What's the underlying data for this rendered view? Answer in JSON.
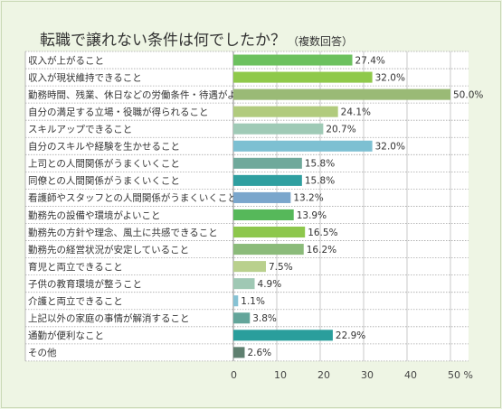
{
  "header": {
    "title": "転職で譲れない条件は何でしたか？",
    "subtitle": "（複数回答）"
  },
  "chart_data": {
    "type": "bar",
    "orientation": "horizontal",
    "title": "転職で譲れない条件は何でしたか？（複数回答）",
    "categories": [
      "収入が上がること",
      "収入が現状維持できること",
      "勤務時間、残業、休日などの労働条件・待遇がよいこと",
      "自分の満足する立場・役職が得られること",
      "スキルアップできること",
      "自分のスキルや経験を生かせること",
      "上司との人間関係がうまくいくこと",
      "同僚との人間関係がうまくいくこと",
      "看護師やスタッフとの人間関係がうまくいくこと",
      "勤務先の設備や環境がよいこと",
      "勤務先の方針や理念、風土に共感できること",
      "勤務先の経営状況が安定していること",
      "育児と両立できること",
      "子供の教育環境が整うこと",
      "介護と両立できること",
      "上記以外の家庭の事情が解消すること",
      "通勤が便利なこと",
      "その他"
    ],
    "values": [
      27.4,
      32.0,
      50.0,
      24.1,
      20.7,
      32.0,
      15.8,
      15.8,
      13.2,
      13.9,
      16.5,
      16.2,
      7.5,
      4.9,
      1.1,
      3.8,
      22.9,
      2.6
    ],
    "value_labels": [
      "27.4%",
      "32.0%",
      "50.0%",
      "24.1%",
      "20.7%",
      "32.0%",
      "15.8%",
      "15.8%",
      "13.2%",
      "13.9%",
      "16.5%",
      "16.2%",
      "7.5%",
      "4.9%",
      "1.1%",
      "3.8%",
      "22.9%",
      "2.6%"
    ],
    "colors": [
      "#6cc15e",
      "#8fc94a",
      "#9aba76",
      "#b1cb7d",
      "#9fcab6",
      "#7dc0d2",
      "#6fa99b",
      "#2f9fa0",
      "#7aa6cc",
      "#56b85a",
      "#8dc74c",
      "#8bbb7a",
      "#b9d08d",
      "#9fc8b4",
      "#86c2d4",
      "#63a59a",
      "#2a9e9c",
      "#5e7f6f"
    ],
    "xlim": [
      0,
      50
    ],
    "xticks": [
      "0",
      "10",
      "20",
      "30",
      "40",
      "50 %"
    ],
    "grid": true,
    "legend": "none"
  }
}
